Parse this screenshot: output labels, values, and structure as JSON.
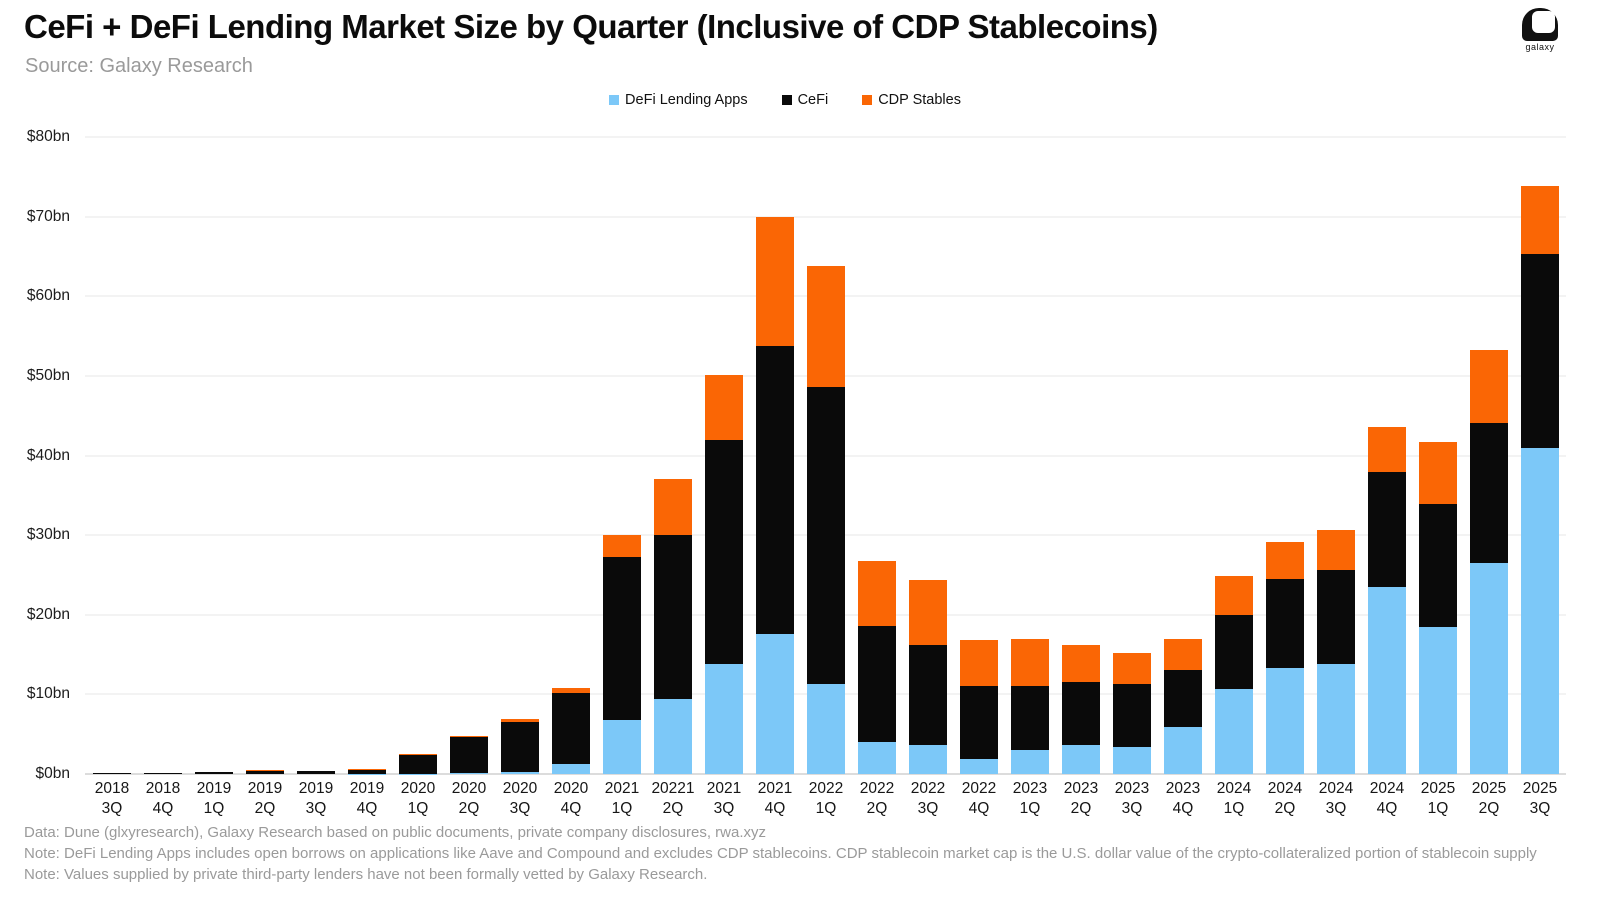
{
  "header": {
    "title": "CeFi + DeFi Lending Market Size by Quarter (Inclusive of CDP Stablecoins)",
    "source": "Source: Galaxy Research",
    "logo_word": "galaxy"
  },
  "legend": [
    {
      "label": "DeFi Lending Apps",
      "color": "#7cc8f8"
    },
    {
      "label": "CeFi",
      "color": "#0a0a0a"
    },
    {
      "label": "CDP Stables",
      "color": "#fa6605"
    }
  ],
  "chart_data": {
    "type": "bar",
    "stacked": true,
    "title": "CeFi + DeFi Lending Market Size by Quarter (Inclusive of CDP Stablecoins)",
    "xlabel": "",
    "ylabel": "",
    "ylim": [
      0,
      80
    ],
    "ytick_step": 10,
    "ytick_format": "$%dbn",
    "grid": true,
    "legend_position": "top-center",
    "categories": [
      "2018 3Q",
      "2018 4Q",
      "2019 1Q",
      "2019 2Q",
      "2019 3Q",
      "2019 4Q",
      "2020 1Q",
      "2020 2Q",
      "2020 3Q",
      "2020 4Q",
      "2021 1Q",
      "20221 2Q",
      "2021 3Q",
      "2021 4Q",
      "2022 1Q",
      "2022 2Q",
      "2022 3Q",
      "2022 4Q",
      "2023 1Q",
      "2023 2Q",
      "2023 3Q",
      "2023 4Q",
      "2024 1Q",
      "2024 2Q",
      "2024 3Q",
      "2024 4Q",
      "2025 1Q",
      "2025 2Q",
      "2025 3Q"
    ],
    "series": [
      {
        "name": "DeFi Lending Apps",
        "color": "#7cc8f8",
        "values": [
          0,
          0,
          0,
          0,
          0,
          0.05,
          0.05,
          0.15,
          0.25,
          1.2,
          6.8,
          9.4,
          13.8,
          17.6,
          11.3,
          4.0,
          3.7,
          1.9,
          3.0,
          3.7,
          3.4,
          5.9,
          10.7,
          13.3,
          13.8,
          23.5,
          18.5,
          26.5,
          40.9
        ]
      },
      {
        "name": "CeFi",
        "color": "#0a0a0a",
        "values": [
          0.1,
          0.1,
          0.2,
          0.4,
          0.35,
          0.45,
          2.4,
          4.5,
          6.3,
          9.0,
          20.4,
          20.6,
          28.2,
          36.2,
          37.3,
          14.6,
          12.5,
          9.1,
          8.0,
          7.8,
          7.9,
          7.2,
          9.3,
          11.2,
          11.8,
          14.4,
          15.4,
          17.6,
          24.4
        ]
      },
      {
        "name": "CDP Stables",
        "color": "#fa6605",
        "values": [
          0,
          0,
          0,
          0.05,
          0.05,
          0.1,
          0.1,
          0.15,
          0.35,
          0.65,
          2.8,
          7.0,
          8.1,
          16.1,
          15.2,
          8.2,
          8.2,
          5.8,
          6.0,
          4.7,
          3.9,
          3.9,
          4.9,
          4.7,
          5.1,
          5.7,
          7.8,
          9.2,
          8.5
        ]
      }
    ],
    "ytick_labels": [
      "$0bn",
      "$10bn",
      "$20bn",
      "$30bn",
      "$40bn",
      "$50bn",
      "$60bn",
      "$70bn",
      "$80bn"
    ]
  },
  "footnotes": [
    "Data: Dune (glxyresearch), Galaxy Research based on public documents, private company disclosures, rwa.xyz",
    "Note: DeFi Lending Apps includes open borrows on applications like Aave and Compound and excludes CDP stablecoins. CDP stablecoin market cap is the U.S. dollar value of the crypto-collateralized portion of stablecoin supply",
    "Note: Values supplied by private third-party lenders have not been formally vetted by Galaxy Research."
  ]
}
